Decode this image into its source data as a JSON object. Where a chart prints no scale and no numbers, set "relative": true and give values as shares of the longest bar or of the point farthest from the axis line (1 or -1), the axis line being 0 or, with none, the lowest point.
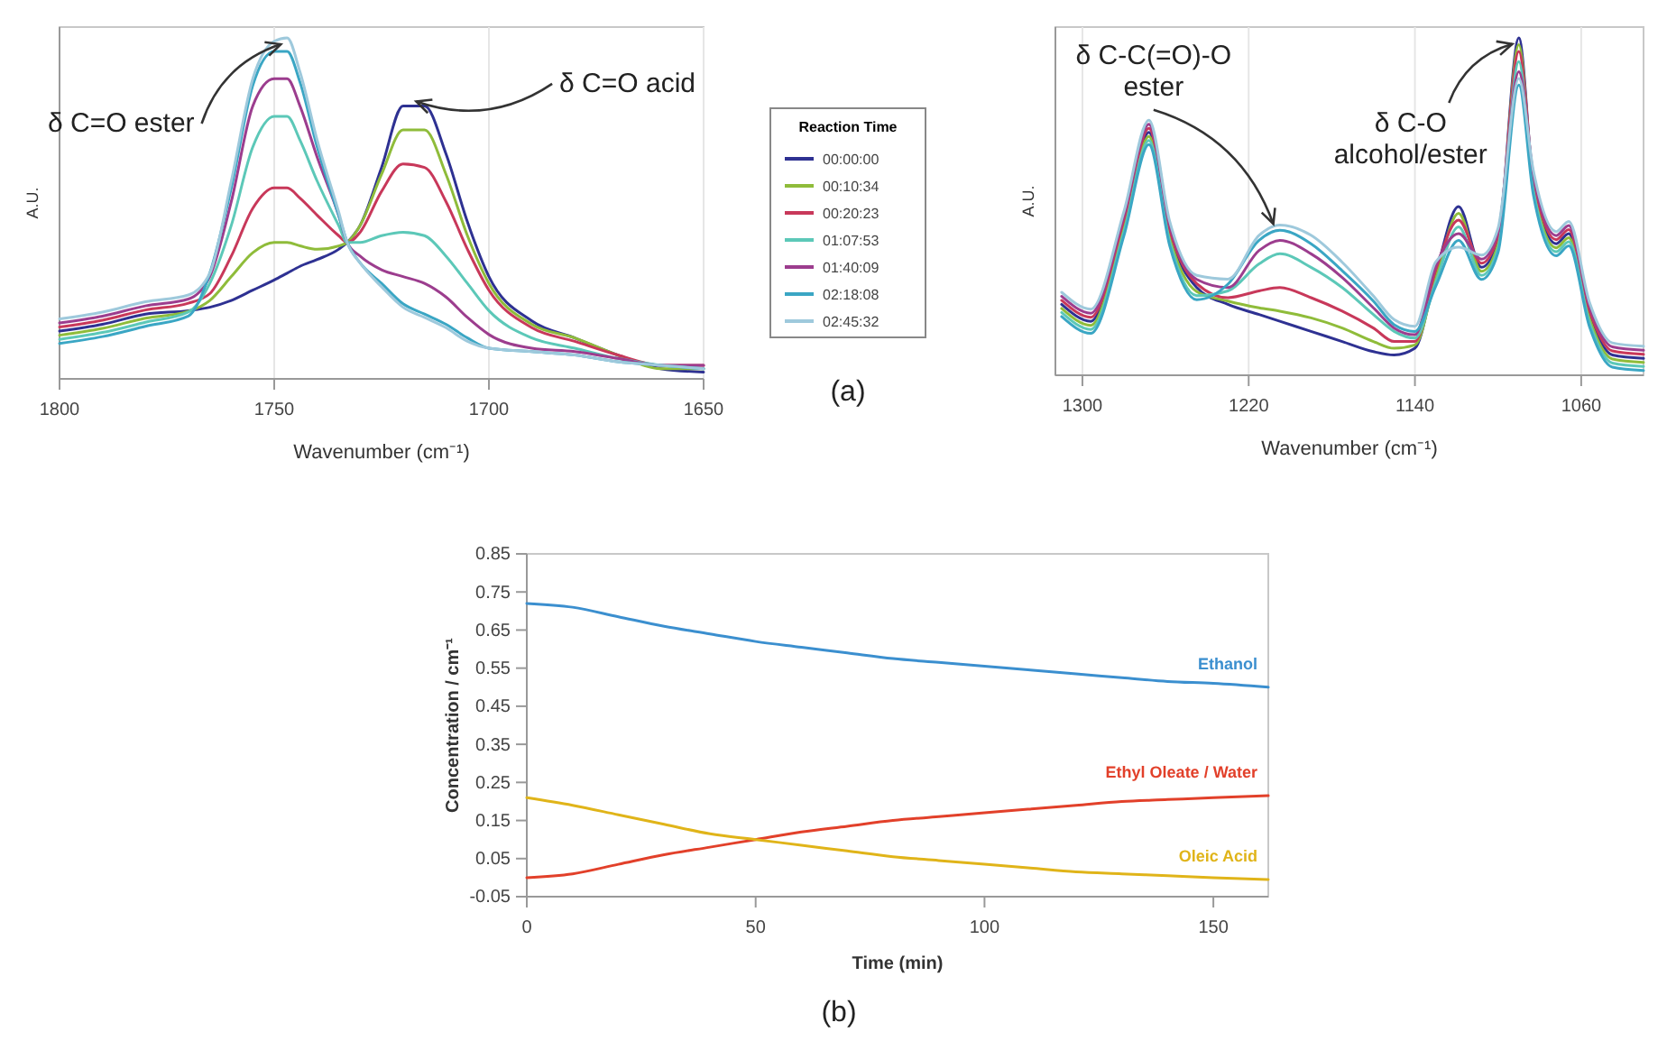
{
  "chart_data": [
    {
      "type": "line",
      "relative": true,
      "xlabel": "Wavenumber (cm⁻¹)",
      "ylabel": "A.U.",
      "legend_title": "Reaction Time",
      "legend": "right",
      "grid": "x",
      "xlim": [
        1800,
        1650
      ],
      "xticks": [
        1800,
        1750,
        1700,
        1650
      ],
      "x": [
        1800,
        1790,
        1780,
        1770,
        1765,
        1760,
        1755,
        1750,
        1747,
        1744,
        1740,
        1735,
        1733,
        1730,
        1725,
        1720,
        1715,
        1710,
        1705,
        1700,
        1690,
        1680,
        1670,
        1660,
        1650
      ],
      "series": [
        {
          "name": "00:00:00",
          "color": "#2e3192",
          "values": [
            0.14,
            0.16,
            0.19,
            0.2,
            0.21,
            0.23,
            0.26,
            0.29,
            0.31,
            0.33,
            0.35,
            0.38,
            0.4,
            0.45,
            0.62,
            0.8,
            0.8,
            0.66,
            0.46,
            0.3,
            0.17,
            0.12,
            0.07,
            0.03,
            0.02
          ]
        },
        {
          "name": "00:10:34",
          "color": "#8fbc3a",
          "values": [
            0.128,
            0.148,
            0.178,
            0.198,
            0.23,
            0.3,
            0.37,
            0.4,
            0.4,
            0.39,
            0.38,
            0.39,
            0.4,
            0.45,
            0.6,
            0.73,
            0.73,
            0.6,
            0.42,
            0.28,
            0.16,
            0.12,
            0.07,
            0.03,
            0.03
          ]
        },
        {
          "name": "00:20:23",
          "color": "#c8385a",
          "values": [
            0.152,
            0.172,
            0.202,
            0.222,
            0.25,
            0.36,
            0.5,
            0.56,
            0.56,
            0.53,
            0.48,
            0.42,
            0.4,
            0.43,
            0.55,
            0.63,
            0.62,
            0.52,
            0.38,
            0.26,
            0.15,
            0.11,
            0.07,
            0.04,
            0.04
          ]
        },
        {
          "name": "01:07:53",
          "color": "#5cc8b8",
          "values": [
            0.116,
            0.136,
            0.166,
            0.196,
            0.28,
            0.45,
            0.68,
            0.77,
            0.77,
            0.7,
            0.58,
            0.45,
            0.4,
            0.4,
            0.42,
            0.43,
            0.42,
            0.36,
            0.28,
            0.2,
            0.12,
            0.09,
            0.06,
            0.04,
            0.03
          ]
        },
        {
          "name": "01:40:09",
          "color": "#9c3d8e",
          "values": [
            0.164,
            0.184,
            0.214,
            0.234,
            0.3,
            0.52,
            0.8,
            0.88,
            0.88,
            0.8,
            0.65,
            0.48,
            0.4,
            0.36,
            0.32,
            0.3,
            0.28,
            0.24,
            0.18,
            0.13,
            0.09,
            0.08,
            0.06,
            0.04,
            0.04
          ]
        },
        {
          "name": "02:18:08",
          "color": "#3aa6c4",
          "values": [
            0.104,
            0.124,
            0.154,
            0.184,
            0.31,
            0.56,
            0.86,
            0.96,
            0.96,
            0.87,
            0.68,
            0.48,
            0.4,
            0.34,
            0.28,
            0.22,
            0.19,
            0.16,
            0.12,
            0.09,
            0.08,
            0.07,
            0.05,
            0.04,
            0.03
          ]
        },
        {
          "name": "02:45:32",
          "color": "#9ec9dc",
          "values": [
            0.176,
            0.196,
            0.226,
            0.246,
            0.31,
            0.58,
            0.88,
            0.99,
            1.0,
            0.9,
            0.7,
            0.49,
            0.4,
            0.34,
            0.27,
            0.21,
            0.18,
            0.15,
            0.11,
            0.09,
            0.08,
            0.07,
            0.05,
            0.04,
            0.03
          ]
        }
      ],
      "annotations": [
        {
          "text": "δ C=O ester",
          "x": 1747,
          "y": 1.0
        },
        {
          "text": "δ C=O acid",
          "x": 1719,
          "y": 0.81
        },
        "(a)"
      ]
    },
    {
      "type": "line",
      "relative": true,
      "xlabel": "Wavenumber (cm⁻¹)",
      "ylabel": "A.U.",
      "grid": "x",
      "xlim": [
        1313,
        1030
      ],
      "xticks": [
        1300,
        1220,
        1140,
        1060
      ],
      "x": [
        1310,
        1296,
        1280,
        1268,
        1258,
        1245,
        1230,
        1215,
        1205,
        1190,
        1175,
        1160,
        1150,
        1140,
        1130,
        1119,
        1108,
        1100,
        1090,
        1083,
        1072,
        1066,
        1056,
        1045,
        1030
      ],
      "series": [
        {
          "color": "#2e3192",
          "values": [
            0.21,
            0.16,
            0.45,
            0.72,
            0.42,
            0.26,
            0.21,
            0.18,
            0.16,
            0.13,
            0.1,
            0.07,
            0.06,
            0.08,
            0.3,
            0.5,
            0.32,
            0.4,
            1.0,
            0.57,
            0.39,
            0.42,
            0.18,
            0.06,
            0.05
          ]
        },
        {
          "color": "#8fbc3a",
          "values": [
            0.198,
            0.148,
            0.438,
            0.708,
            0.408,
            0.248,
            0.22,
            0.2,
            0.19,
            0.17,
            0.14,
            0.1,
            0.08,
            0.09,
            0.288,
            0.48,
            0.308,
            0.388,
            0.98,
            0.558,
            0.378,
            0.408,
            0.168,
            0.048,
            0.038
          ]
        },
        {
          "color": "#c8385a",
          "values": [
            0.222,
            0.172,
            0.462,
            0.732,
            0.432,
            0.272,
            0.23,
            0.25,
            0.26,
            0.23,
            0.19,
            0.14,
            0.1,
            0.1,
            0.312,
            0.46,
            0.332,
            0.412,
            0.96,
            0.582,
            0.402,
            0.432,
            0.192,
            0.072,
            0.062
          ]
        },
        {
          "color": "#5cc8b8",
          "values": [
            0.186,
            0.136,
            0.426,
            0.696,
            0.396,
            0.236,
            0.25,
            0.33,
            0.36,
            0.32,
            0.26,
            0.18,
            0.13,
            0.11,
            0.276,
            0.44,
            0.296,
            0.376,
            0.93,
            0.546,
            0.366,
            0.396,
            0.156,
            0.036,
            0.026
          ]
        },
        {
          "color": "#9c3d8e",
          "values": [
            0.234,
            0.184,
            0.474,
            0.744,
            0.444,
            0.284,
            0.26,
            0.37,
            0.4,
            0.36,
            0.29,
            0.2,
            0.14,
            0.12,
            0.324,
            0.42,
            0.344,
            0.424,
            0.9,
            0.594,
            0.414,
            0.444,
            0.204,
            0.084,
            0.074
          ]
        },
        {
          "color": "#3aa6c4",
          "values": [
            0.174,
            0.124,
            0.414,
            0.684,
            0.384,
            0.224,
            0.27,
            0.4,
            0.43,
            0.39,
            0.31,
            0.22,
            0.15,
            0.13,
            0.264,
            0.4,
            0.284,
            0.364,
            0.86,
            0.534,
            0.354,
            0.384,
            0.144,
            0.024,
            0.014
          ]
        },
        {
          "color": "#9ec9dc",
          "values": [
            0.246,
            0.196,
            0.486,
            0.756,
            0.456,
            0.296,
            0.285,
            0.415,
            0.445,
            0.415,
            0.335,
            0.235,
            0.165,
            0.145,
            0.336,
            0.38,
            0.356,
            0.436,
            0.88,
            0.606,
            0.426,
            0.456,
            0.216,
            0.096,
            0.086
          ]
        }
      ],
      "annotations": [
        {
          "text": "δ C-C(=O)-O ester",
          "x": 1205,
          "y": 0.43
        },
        {
          "text": "δ C-O alcohol/ester",
          "x": 1090,
          "y": 1.0
        }
      ]
    },
    {
      "type": "line",
      "xlabel": "Time (min)",
      "ylabel": "Concentration / cm⁻¹",
      "xlim": [
        0,
        162
      ],
      "xticks": [
        0,
        50,
        100,
        150
      ],
      "ylim": [
        -0.05,
        0.85
      ],
      "yticks": [
        -0.05,
        0.05,
        0.15,
        0.25,
        0.35,
        0.45,
        0.55,
        0.65,
        0.75,
        0.85
      ],
      "x": [
        0,
        10,
        20,
        30,
        40,
        50,
        60,
        70,
        80,
        90,
        100,
        110,
        120,
        130,
        140,
        150,
        162
      ],
      "series": [
        {
          "name": "Ethanol",
          "color": "#3b8fcf",
          "values": [
            0.72,
            0.71,
            0.685,
            0.66,
            0.64,
            0.62,
            0.605,
            0.59,
            0.575,
            0.565,
            0.555,
            0.545,
            0.535,
            0.525,
            0.515,
            0.51,
            0.5
          ]
        },
        {
          "name": "Ethyl Oleate / Water",
          "color": "#e2402a",
          "values": [
            0.0,
            0.01,
            0.035,
            0.06,
            0.08,
            0.1,
            0.12,
            0.135,
            0.15,
            0.16,
            0.17,
            0.18,
            0.19,
            0.2,
            0.205,
            0.21,
            0.215
          ]
        },
        {
          "name": "Oleic Acid",
          "color": "#e0b419",
          "values": [
            0.21,
            0.19,
            0.165,
            0.14,
            0.115,
            0.1,
            0.085,
            0.07,
            0.055,
            0.045,
            0.035,
            0.025,
            0.015,
            0.01,
            0.005,
            0.0,
            -0.005
          ]
        }
      ],
      "annotations": [
        "(b)"
      ]
    }
  ]
}
